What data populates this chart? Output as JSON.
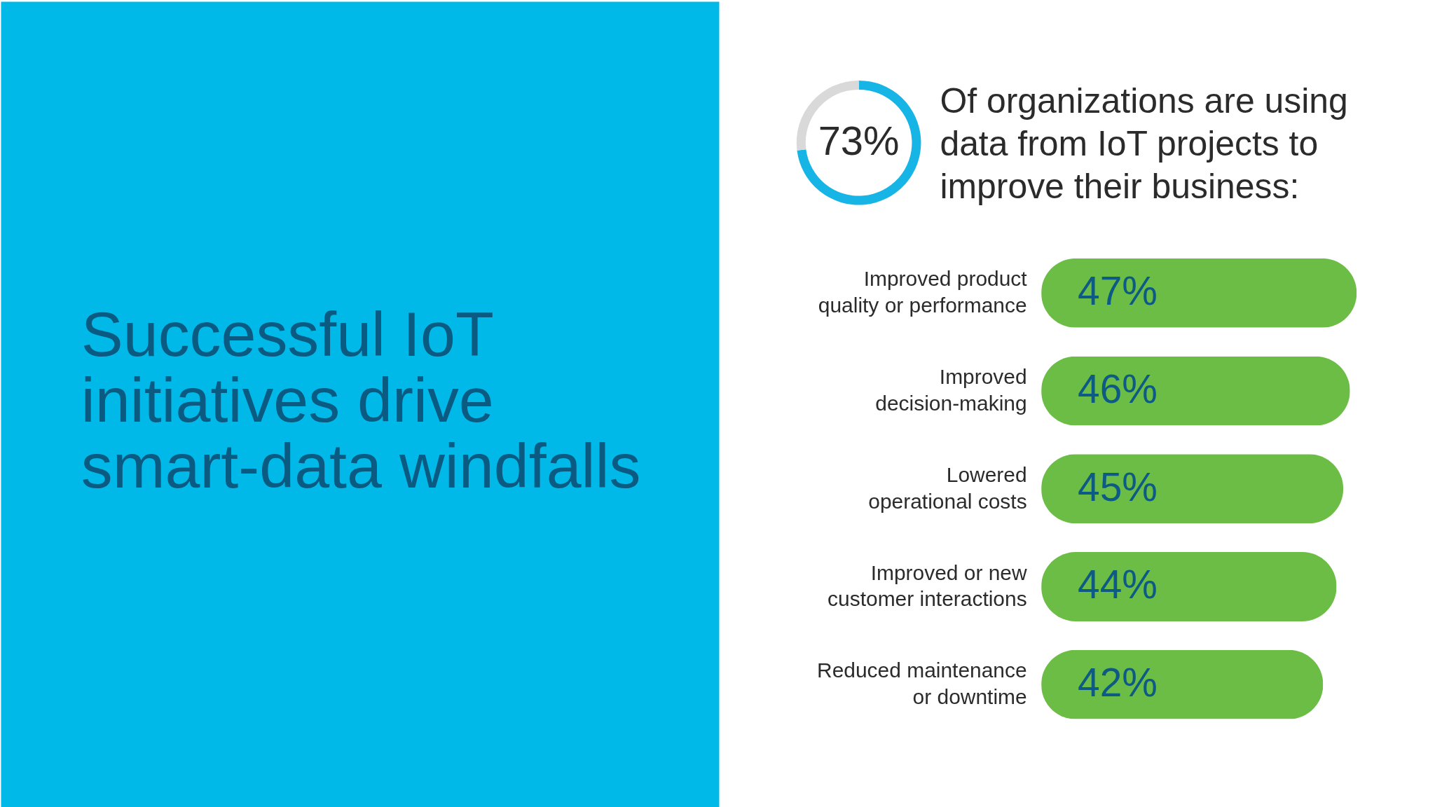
{
  "chart_data": [
    {
      "type": "other",
      "title": "Successful IoT initiatives drive smart-data windfalls"
    },
    {
      "type": "donut",
      "title": "Of organizations are using data from IoT projects to improve their business:",
      "categories": [
        null,
        null
      ],
      "values": [
        73,
        27
      ],
      "colors": [
        "#16b5e6",
        "#d9d9d9"
      ],
      "value_labels": [
        "73%",
        null
      ]
    },
    {
      "type": "bar",
      "orientation": "horizontal",
      "categories": [
        "Improved product quality or performance",
        "Improved decision-making",
        "Lowered operational costs",
        "Improved or new customer interactions",
        "Reduced maintenance or downtime"
      ],
      "values": [
        47,
        46,
        45,
        44,
        42
      ],
      "color": "#6cbd45",
      "value_labels": [
        "47%",
        "46%",
        "45%",
        "44%",
        "42%"
      ],
      "tick_labels": "y"
    }
  ]
}
